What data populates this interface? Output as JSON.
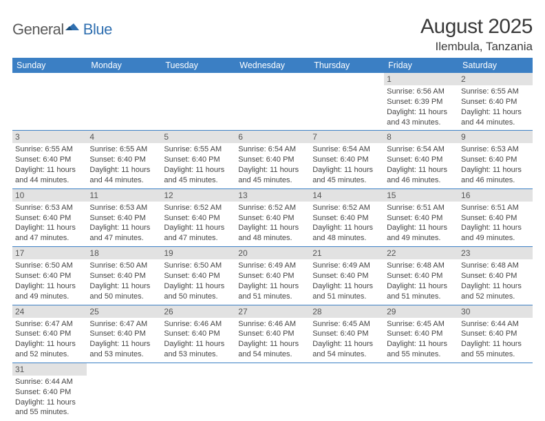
{
  "logo": {
    "general": "General",
    "blue": "Blue"
  },
  "title": "August 2025",
  "location": "Ilembula, Tanzania",
  "header_bg": "#3b7fc4",
  "daynum_bg": "#e2e2e2",
  "divider_color": "#3b7fc4",
  "weekdays": [
    "Sunday",
    "Monday",
    "Tuesday",
    "Wednesday",
    "Thursday",
    "Friday",
    "Saturday"
  ],
  "weeks": [
    {
      "nums": [
        "",
        "",
        "",
        "",
        "",
        "1",
        "2"
      ],
      "cells": [
        null,
        null,
        null,
        null,
        null,
        {
          "sunrise": "6:56 AM",
          "sunset": "6:39 PM",
          "daylight": "11 hours and 43 minutes."
        },
        {
          "sunrise": "6:55 AM",
          "sunset": "6:40 PM",
          "daylight": "11 hours and 44 minutes."
        }
      ]
    },
    {
      "nums": [
        "3",
        "4",
        "5",
        "6",
        "7",
        "8",
        "9"
      ],
      "cells": [
        {
          "sunrise": "6:55 AM",
          "sunset": "6:40 PM",
          "daylight": "11 hours and 44 minutes."
        },
        {
          "sunrise": "6:55 AM",
          "sunset": "6:40 PM",
          "daylight": "11 hours and 44 minutes."
        },
        {
          "sunrise": "6:55 AM",
          "sunset": "6:40 PM",
          "daylight": "11 hours and 45 minutes."
        },
        {
          "sunrise": "6:54 AM",
          "sunset": "6:40 PM",
          "daylight": "11 hours and 45 minutes."
        },
        {
          "sunrise": "6:54 AM",
          "sunset": "6:40 PM",
          "daylight": "11 hours and 45 minutes."
        },
        {
          "sunrise": "6:54 AM",
          "sunset": "6:40 PM",
          "daylight": "11 hours and 46 minutes."
        },
        {
          "sunrise": "6:53 AM",
          "sunset": "6:40 PM",
          "daylight": "11 hours and 46 minutes."
        }
      ]
    },
    {
      "nums": [
        "10",
        "11",
        "12",
        "13",
        "14",
        "15",
        "16"
      ],
      "cells": [
        {
          "sunrise": "6:53 AM",
          "sunset": "6:40 PM",
          "daylight": "11 hours and 47 minutes."
        },
        {
          "sunrise": "6:53 AM",
          "sunset": "6:40 PM",
          "daylight": "11 hours and 47 minutes."
        },
        {
          "sunrise": "6:52 AM",
          "sunset": "6:40 PM",
          "daylight": "11 hours and 47 minutes."
        },
        {
          "sunrise": "6:52 AM",
          "sunset": "6:40 PM",
          "daylight": "11 hours and 48 minutes."
        },
        {
          "sunrise": "6:52 AM",
          "sunset": "6:40 PM",
          "daylight": "11 hours and 48 minutes."
        },
        {
          "sunrise": "6:51 AM",
          "sunset": "6:40 PM",
          "daylight": "11 hours and 49 minutes."
        },
        {
          "sunrise": "6:51 AM",
          "sunset": "6:40 PM",
          "daylight": "11 hours and 49 minutes."
        }
      ]
    },
    {
      "nums": [
        "17",
        "18",
        "19",
        "20",
        "21",
        "22",
        "23"
      ],
      "cells": [
        {
          "sunrise": "6:50 AM",
          "sunset": "6:40 PM",
          "daylight": "11 hours and 49 minutes."
        },
        {
          "sunrise": "6:50 AM",
          "sunset": "6:40 PM",
          "daylight": "11 hours and 50 minutes."
        },
        {
          "sunrise": "6:50 AM",
          "sunset": "6:40 PM",
          "daylight": "11 hours and 50 minutes."
        },
        {
          "sunrise": "6:49 AM",
          "sunset": "6:40 PM",
          "daylight": "11 hours and 51 minutes."
        },
        {
          "sunrise": "6:49 AM",
          "sunset": "6:40 PM",
          "daylight": "11 hours and 51 minutes."
        },
        {
          "sunrise": "6:48 AM",
          "sunset": "6:40 PM",
          "daylight": "11 hours and 51 minutes."
        },
        {
          "sunrise": "6:48 AM",
          "sunset": "6:40 PM",
          "daylight": "11 hours and 52 minutes."
        }
      ]
    },
    {
      "nums": [
        "24",
        "25",
        "26",
        "27",
        "28",
        "29",
        "30"
      ],
      "cells": [
        {
          "sunrise": "6:47 AM",
          "sunset": "6:40 PM",
          "daylight": "11 hours and 52 minutes."
        },
        {
          "sunrise": "6:47 AM",
          "sunset": "6:40 PM",
          "daylight": "11 hours and 53 minutes."
        },
        {
          "sunrise": "6:46 AM",
          "sunset": "6:40 PM",
          "daylight": "11 hours and 53 minutes."
        },
        {
          "sunrise": "6:46 AM",
          "sunset": "6:40 PM",
          "daylight": "11 hours and 54 minutes."
        },
        {
          "sunrise": "6:45 AM",
          "sunset": "6:40 PM",
          "daylight": "11 hours and 54 minutes."
        },
        {
          "sunrise": "6:45 AM",
          "sunset": "6:40 PM",
          "daylight": "11 hours and 55 minutes."
        },
        {
          "sunrise": "6:44 AM",
          "sunset": "6:40 PM",
          "daylight": "11 hours and 55 minutes."
        }
      ]
    },
    {
      "nums": [
        "31",
        "",
        "",
        "",
        "",
        "",
        ""
      ],
      "cells": [
        {
          "sunrise": "6:44 AM",
          "sunset": "6:40 PM",
          "daylight": "11 hours and 55 minutes."
        },
        null,
        null,
        null,
        null,
        null,
        null
      ]
    }
  ],
  "labels": {
    "sunrise": "Sunrise: ",
    "sunset": "Sunset: ",
    "daylight": "Daylight: "
  }
}
